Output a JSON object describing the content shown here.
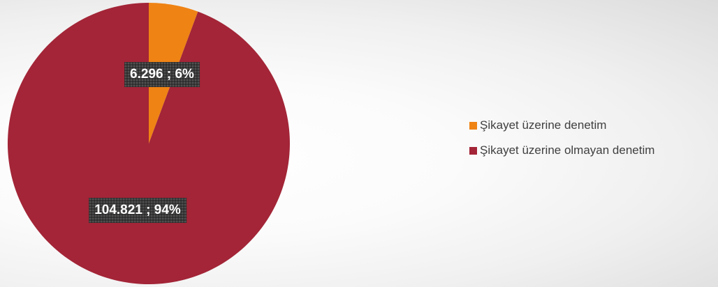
{
  "chart_data": {
    "type": "pie",
    "title": "",
    "series": [
      {
        "name": "",
        "values": [
          6296,
          104821
        ]
      }
    ],
    "categories": [
      "Şikayet üzerine denetim",
      "Şikayet üzerine olmayan denetim"
    ],
    "values": [
      6296,
      104821
    ],
    "percentages": [
      6,
      94
    ],
    "data_labels": [
      "6.296 ; 6%",
      "104.821 ; 94%"
    ],
    "colors": [
      "#ef8314",
      "#a32537"
    ],
    "legend": {
      "position": "right",
      "entries": [
        "Şikayet üzerine denetim",
        "Şikayet üzerine olmayan denetim"
      ]
    }
  }
}
